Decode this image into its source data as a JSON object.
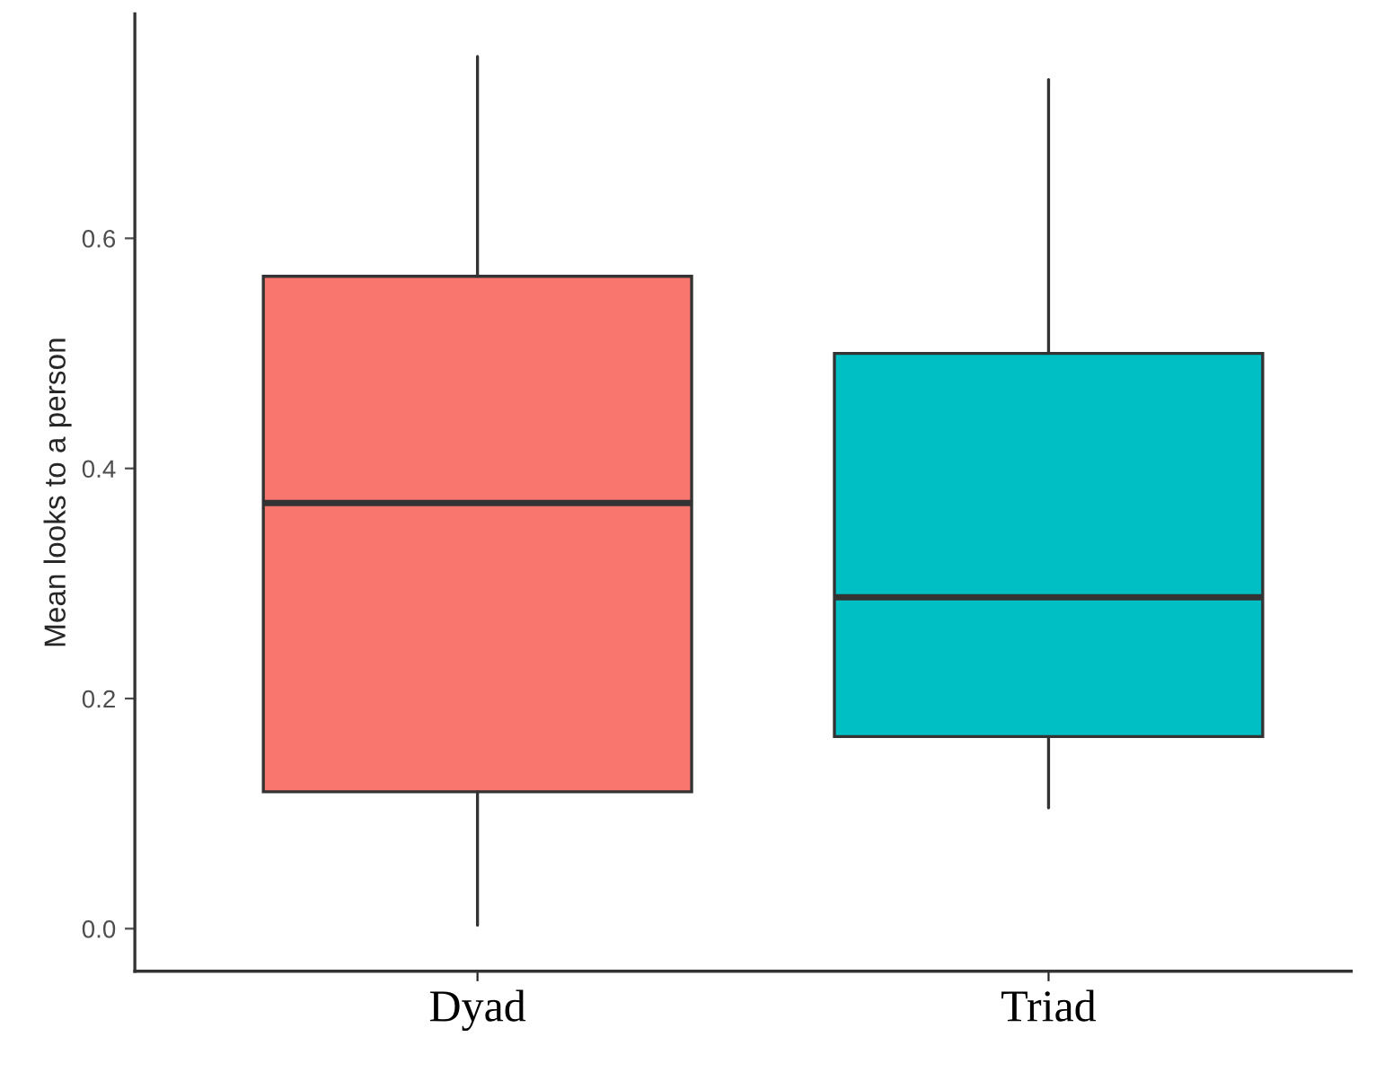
{
  "chart_data": {
    "type": "box",
    "ylabel": "Mean looks to a person",
    "categories": [
      "Dyad",
      "Triad"
    ],
    "boxes": [
      {
        "low": 0.003,
        "q1": 0.119,
        "median": 0.37,
        "q3": 0.567,
        "high": 0.758
      },
      {
        "low": 0.105,
        "q1": 0.167,
        "median": 0.288,
        "q3": 0.5,
        "high": 0.738
      }
    ],
    "colors": [
      "#f8766d",
      "#00bfc4"
    ],
    "ylim": [
      -0.037,
      0.795
    ],
    "yticks": [
      {
        "value": 0,
        "label": "0.0"
      },
      {
        "value": 0.2,
        "label": "0.2"
      },
      {
        "value": 0.4,
        "label": "0.4"
      },
      {
        "value": 0.6,
        "label": "0.6"
      }
    ],
    "grid": false
  }
}
